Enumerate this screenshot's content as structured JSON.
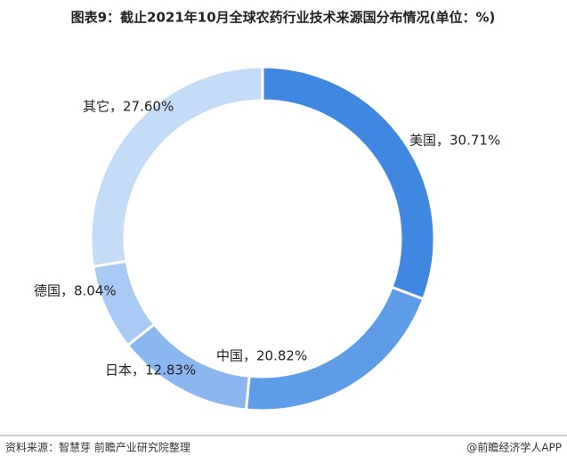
{
  "chart_data": {
    "type": "donut",
    "title": "图表9：截止2021年10月全球农药行业技术来源国分布情况(单位：%)",
    "values": [
      30.71,
      20.82,
      12.83,
      8.04,
      27.6
    ],
    "value_labels": [
      "美国，30.71%",
      "中国，20.82%",
      "日本，12.83%",
      "德国，8.04%",
      "其它，27.60%"
    ],
    "colors": [
      "#3f87e0",
      "#5f9ce8",
      "#8ab7ef",
      "#a8c9f3",
      "#c5dcf7"
    ]
  },
  "footer": {
    "source": "资料来源：智慧芽 前瞻产业研究院整理",
    "credit": "@前瞻经济学人APP"
  }
}
